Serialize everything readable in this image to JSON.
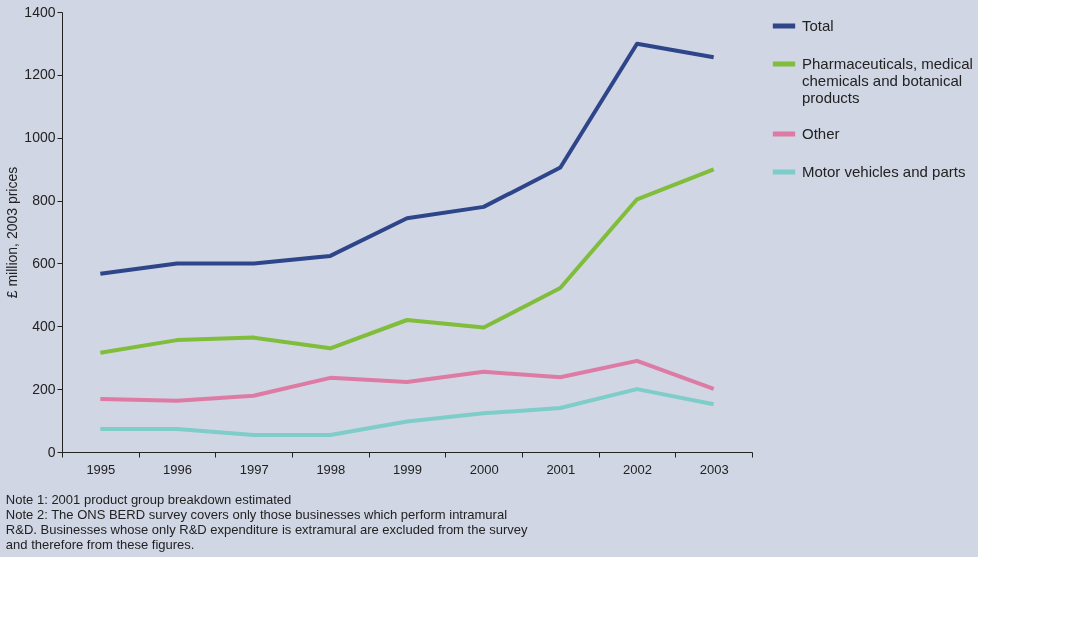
{
  "chart_data": {
    "type": "line",
    "ylabel": "£ million, 2003 prices",
    "categories": [
      "1995",
      "1996",
      "1997",
      "1998",
      "1999",
      "2000",
      "2001",
      "2002",
      "2003"
    ],
    "series": [
      {
        "name": "Total",
        "color": "#2e4589",
        "values": [
          567,
          600,
          600,
          624,
          744,
          780,
          905,
          1299,
          1256
        ]
      },
      {
        "name": "Pharmaceuticals, medical chemicals and botanical products",
        "color": "#80bd3a",
        "values": [
          316,
          356,
          364,
          330,
          420,
          396,
          522,
          804,
          899
        ]
      },
      {
        "name": "Other",
        "color": "#dd7ba4",
        "values": [
          169,
          163,
          179,
          236,
          223,
          255,
          238,
          290,
          201
        ]
      },
      {
        "name": "Motor vehicles and parts",
        "color": "#7ecdc8",
        "values": [
          73,
          73,
          54,
          54,
          97,
          123,
          140,
          200,
          152
        ]
      }
    ],
    "ylim": [
      0,
      1400
    ],
    "yticks": [
      0,
      200,
      400,
      600,
      800,
      1000,
      1200,
      1400
    ],
    "grid": false,
    "legend": "right",
    "marker": "none",
    "line_style": "solid",
    "annotations": [
      "Note 1: 2001 product group breakdown estimated",
      "Note 2: The ONS BERD survey covers only those businesses which perform intramural R&D. Businesses whose only R&D expenditure is extramural are excluded from the survey and therefore from these figures."
    ]
  }
}
